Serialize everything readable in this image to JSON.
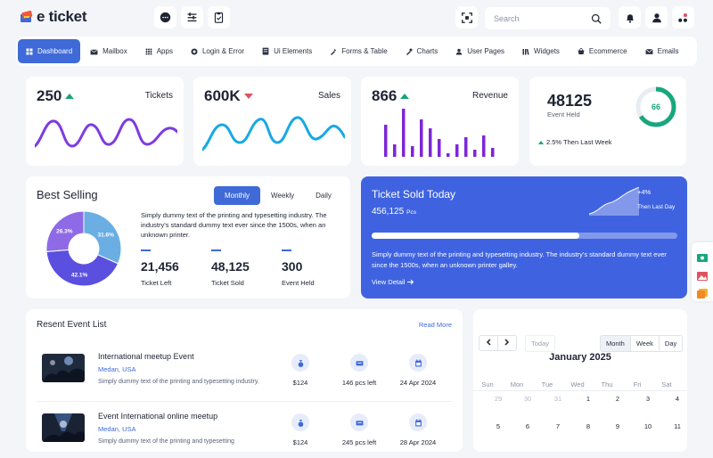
{
  "brand": {
    "name": "e ticket"
  },
  "search": {
    "placeholder": "Search"
  },
  "nav": [
    {
      "label": "Dashboard",
      "icon": "dashboard-icon",
      "active": true
    },
    {
      "label": "Mailbox",
      "icon": "mailbox-icon"
    },
    {
      "label": "Apps",
      "icon": "apps-icon"
    },
    {
      "label": "Login & Error",
      "icon": "login-icon"
    },
    {
      "label": "Ui Elements",
      "icon": "ui-elements-icon"
    },
    {
      "label": "Forms & Table",
      "icon": "forms-icon"
    },
    {
      "label": "Charts",
      "icon": "charts-icon"
    },
    {
      "label": "User Pages",
      "icon": "user-icon"
    },
    {
      "label": "Widgets",
      "icon": "widgets-icon"
    },
    {
      "label": "Ecommerce",
      "icon": "cart-icon"
    },
    {
      "label": "Emails",
      "icon": "email-icon"
    }
  ],
  "stats": {
    "tickets": {
      "value": "250",
      "label": "Tickets",
      "trend": "up"
    },
    "sales": {
      "value": "600K",
      "label": "Sales",
      "trend": "down"
    },
    "revenue": {
      "value": "866",
      "label": "Revenue",
      "trend": "up"
    },
    "events": {
      "value": "48125",
      "label": "Event Held",
      "ring_value": "66",
      "ring_percent": 66,
      "change": "2.5% Then Last Week"
    }
  },
  "best_selling": {
    "title": "Best Selling",
    "tabs": [
      "Monthly",
      "Weekly",
      "Daily"
    ],
    "active_tab": "Monthly",
    "description": "Simply dummy text of the printing and typesetting industry. The industry's standard dummy text ever since the 1500s, when an unknown printer.",
    "pie": [
      {
        "label": "31.6%",
        "value": 31.6,
        "color": "#6aaee3"
      },
      {
        "label": "42.1%",
        "value": 42.1,
        "color": "#5b4fe0"
      },
      {
        "label": "26.3%",
        "value": 26.3,
        "color": "#8f6ae6"
      }
    ],
    "metrics": [
      {
        "value": "21,456",
        "label": "Ticket Left"
      },
      {
        "value": "48,125",
        "label": "Ticket Sold"
      },
      {
        "value": "300",
        "label": "Event Held"
      }
    ]
  },
  "sold_today": {
    "title": "Ticket Sold Today",
    "count": "456,125",
    "unit": "Pcs",
    "change": "+4%",
    "change_label": "Then Last Day",
    "progress": 0.68,
    "description": "Simply dummy text of the printing and typesetting industry. The industry's standard dummy text ever since the 1500s, when an unknown printer galley.",
    "link": "View Detail"
  },
  "events": {
    "title": "Resent Event List",
    "read_more": "Read More",
    "items": [
      {
        "title": "International meetup Event",
        "location": "Medan, USA",
        "desc": "Simply dummy text of the printing and typesetting industry.",
        "price": "$124",
        "left": "146 pcs left",
        "date": "24 Apr 2024"
      },
      {
        "title": "Event International online meetup",
        "location": "Medan, USA",
        "desc": "Simply dummy text of the printing and typesetting",
        "price": "$124",
        "left": "245 pcs left",
        "date": "28 Apr 2024"
      }
    ]
  },
  "calendar": {
    "title": "January 2025",
    "today": "Today",
    "views": [
      "Month",
      "Week",
      "Day"
    ],
    "active_view": "Month",
    "weekdays": [
      "Sun",
      "Mon",
      "Tue",
      "Wed",
      "Thu",
      "Fri",
      "Sat"
    ],
    "week1": [
      "29",
      "30",
      "31",
      "1",
      "2",
      "3",
      "4"
    ],
    "week2": [
      "5",
      "6",
      "7",
      "8",
      "9",
      "10",
      "11"
    ]
  }
}
